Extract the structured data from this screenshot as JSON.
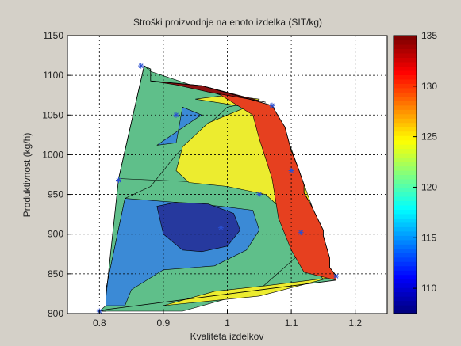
{
  "chart_data": {
    "type": "contour",
    "title": "Stroški proizvodnje na enoto izdelka (SIT/kg)",
    "xlabel": "Kvaliteta izdelkov",
    "ylabel": "Produktivnost (kg/h)",
    "xlim": [
      0.75,
      1.25
    ],
    "ylim": [
      800,
      1150
    ],
    "xticks": [
      0.8,
      0.9,
      1,
      1.1,
      1.2
    ],
    "yticks": [
      800,
      850,
      900,
      950,
      1000,
      1050,
      1100,
      1150
    ],
    "grid": true,
    "colorbar": {
      "range": [
        107.5,
        135
      ],
      "ticks": [
        110,
        115,
        120,
        125,
        130,
        135
      ]
    },
    "levels": [
      {
        "range": [
          107.5,
          110
        ],
        "color": "#26399e"
      },
      {
        "range": [
          110,
          115
        ],
        "color": "#3b8ad6"
      },
      {
        "range": [
          115,
          120
        ],
        "color": "#5fbf8a"
      },
      {
        "range": [
          120,
          125
        ],
        "color": "#ecec2f"
      },
      {
        "range": [
          125,
          130
        ],
        "color": "#e6401f"
      },
      {
        "range": [
          130,
          135
        ],
        "color": "#8b1212"
      }
    ],
    "region_outline": [
      [
        0.8,
        803
      ],
      [
        0.81,
        803
      ],
      [
        0.81,
        820
      ],
      [
        0.83,
        970
      ],
      [
        0.87,
        1112
      ],
      [
        0.88,
        1108
      ],
      [
        0.88,
        1093
      ],
      [
        0.96,
        1087
      ],
      [
        1.07,
        1062
      ],
      [
        1.08,
        1048
      ],
      [
        1.09,
        1035
      ],
      [
        1.1,
        1005
      ],
      [
        1.11,
        985
      ],
      [
        1.12,
        962
      ],
      [
        1.12,
        952
      ],
      [
        1.13,
        938
      ],
      [
        1.15,
        905
      ],
      [
        1.15,
        898
      ],
      [
        1.16,
        870
      ],
      [
        1.16,
        858
      ],
      [
        1.17,
        848
      ],
      [
        1.17,
        842
      ],
      [
        0.81,
        805
      ]
    ],
    "bands": [
      {
        "level": 2,
        "polygon": [
          [
            0.83,
            970
          ],
          [
            0.87,
            1112
          ],
          [
            0.88,
            1105
          ],
          [
            0.99,
            1075
          ],
          [
            1.05,
            1068
          ],
          [
            1.0,
            1060
          ],
          [
            0.92,
            1000
          ],
          [
            0.88,
            960
          ],
          [
            0.84,
            945
          ],
          [
            0.81,
            830
          ],
          [
            0.81,
            810
          ],
          [
            0.8,
            803
          ],
          [
            0.93,
            803
          ],
          [
            1.05,
            830
          ],
          [
            1.12,
            880
          ],
          [
            1.14,
            920
          ],
          [
            1.13,
            940
          ],
          [
            1.12,
            960
          ]
        ]
      },
      {
        "level": 3,
        "polygon": [
          [
            0.95,
            1070
          ],
          [
            1.0,
            1075
          ],
          [
            1.05,
            1070
          ],
          [
            1.03,
            1060
          ],
          [
            0.97,
            1040
          ],
          [
            0.93,
            1010
          ],
          [
            0.92,
            980
          ],
          [
            0.94,
            965
          ],
          [
            1.0,
            960
          ],
          [
            1.06,
            950
          ],
          [
            1.08,
            935
          ],
          [
            1.11,
            900
          ],
          [
            1.13,
            860
          ],
          [
            1.16,
            845
          ],
          [
            1.06,
            835
          ],
          [
            0.98,
            828
          ],
          [
            0.9,
            810
          ],
          [
            1.05,
            822
          ],
          [
            1.15,
            843
          ],
          [
            1.12,
            880
          ],
          [
            1.13,
            940
          ],
          [
            1.11,
            985
          ],
          [
            1.09,
            1030
          ],
          [
            1.07,
            1055
          ]
        ]
      },
      {
        "level": 4,
        "polygon": [
          [
            0.97,
            1085
          ],
          [
            1.07,
            1062
          ],
          [
            1.08,
            1048
          ],
          [
            1.09,
            1035
          ],
          [
            1.1,
            1005
          ],
          [
            1.11,
            985
          ],
          [
            1.12,
            962
          ],
          [
            1.12,
            952
          ],
          [
            1.13,
            938
          ],
          [
            1.15,
            905
          ],
          [
            1.15,
            898
          ],
          [
            1.16,
            870
          ],
          [
            1.16,
            858
          ],
          [
            1.17,
            848
          ],
          [
            1.17,
            842
          ],
          [
            1.12,
            852
          ],
          [
            1.1,
            880
          ],
          [
            1.08,
            920
          ],
          [
            1.07,
            970
          ],
          [
            1.05,
            1020
          ],
          [
            1.04,
            1050
          ],
          [
            1.0,
            1070
          ]
        ]
      },
      {
        "level": 5,
        "polygon": [
          [
            0.88,
            1093
          ],
          [
            0.96,
            1087
          ],
          [
            1.06,
            1066
          ],
          [
            1.02,
            1072
          ],
          [
            0.97,
            1079
          ],
          [
            0.92,
            1088
          ]
        ]
      },
      {
        "level": 1,
        "polygon": [
          [
            0.81,
            810
          ],
          [
            0.81,
            830
          ],
          [
            0.84,
            945
          ],
          [
            0.92,
            940
          ],
          [
            0.99,
            935
          ],
          [
            1.04,
            930
          ],
          [
            1.05,
            905
          ],
          [
            1.03,
            880
          ],
          [
            0.98,
            860
          ],
          [
            0.9,
            855
          ],
          [
            0.85,
            830
          ],
          [
            0.84,
            810
          ]
        ]
      },
      {
        "level": 0,
        "polygon": [
          [
            0.89,
            935
          ],
          [
            0.92,
            940
          ],
          [
            0.97,
            938
          ],
          [
            1.01,
            926
          ],
          [
            1.02,
            905
          ],
          [
            1.0,
            885
          ],
          [
            0.96,
            878
          ],
          [
            0.93,
            880
          ],
          [
            0.9,
            900
          ]
        ]
      },
      {
        "level": 1,
        "polygon": [
          [
            0.89,
            1012
          ],
          [
            0.95,
            1045
          ],
          [
            0.96,
            1050
          ],
          [
            0.93,
            1060
          ],
          [
            0.92,
            1015
          ]
        ]
      }
    ],
    "points": [
      [
        0.8,
        803
      ],
      [
        0.83,
        968
      ],
      [
        0.865,
        1112
      ],
      [
        0.92,
        1050
      ],
      [
        0.99,
        908
      ],
      [
        1.05,
        950
      ],
      [
        1.07,
        1062
      ],
      [
        1.1,
        980
      ],
      [
        1.115,
        902
      ],
      [
        1.17,
        847
      ]
    ]
  }
}
